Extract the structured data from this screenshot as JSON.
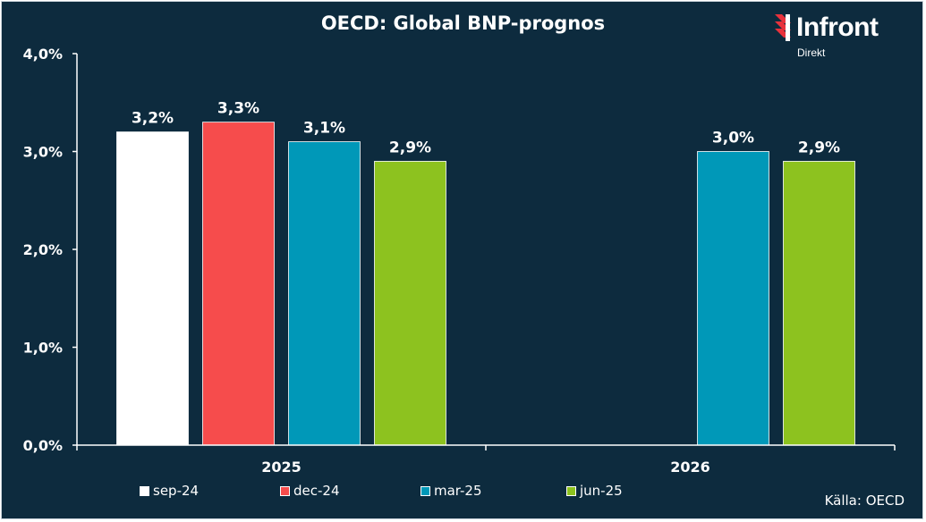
{
  "chart_data": {
    "type": "bar",
    "title": "OECD: Global BNP-prognos",
    "categories": [
      "2025",
      "2026"
    ],
    "series": [
      {
        "name": "sep-24",
        "color": "#ffffff",
        "values": [
          3.2,
          null
        ]
      },
      {
        "name": "dec-24",
        "color": "#f64c4c",
        "values": [
          3.3,
          null
        ]
      },
      {
        "name": "mar-25",
        "color": "#0098b8",
        "values": [
          3.1,
          3.0
        ]
      },
      {
        "name": "jun-25",
        "color": "#8dc21f",
        "values": [
          2.9,
          2.9
        ]
      }
    ],
    "data_labels": [
      [
        "3,2%",
        null
      ],
      [
        "3,3%",
        null
      ],
      [
        "3,1%",
        "3,0%"
      ],
      [
        "2,9%",
        "2,9%"
      ]
    ],
    "ylim": [
      0,
      4
    ],
    "yticks": [
      "0,0%",
      "1,0%",
      "2,0%",
      "3,0%",
      "4,0%"
    ],
    "xlabel": "",
    "ylabel": "",
    "grid": false,
    "legend_position": "bottom"
  },
  "logo": {
    "word": "Infront",
    "sub": "Direkt"
  },
  "source": "Källa:  OECD",
  "colors": {
    "background": "#0d2b3e",
    "logo_accent": "#e8323c"
  }
}
